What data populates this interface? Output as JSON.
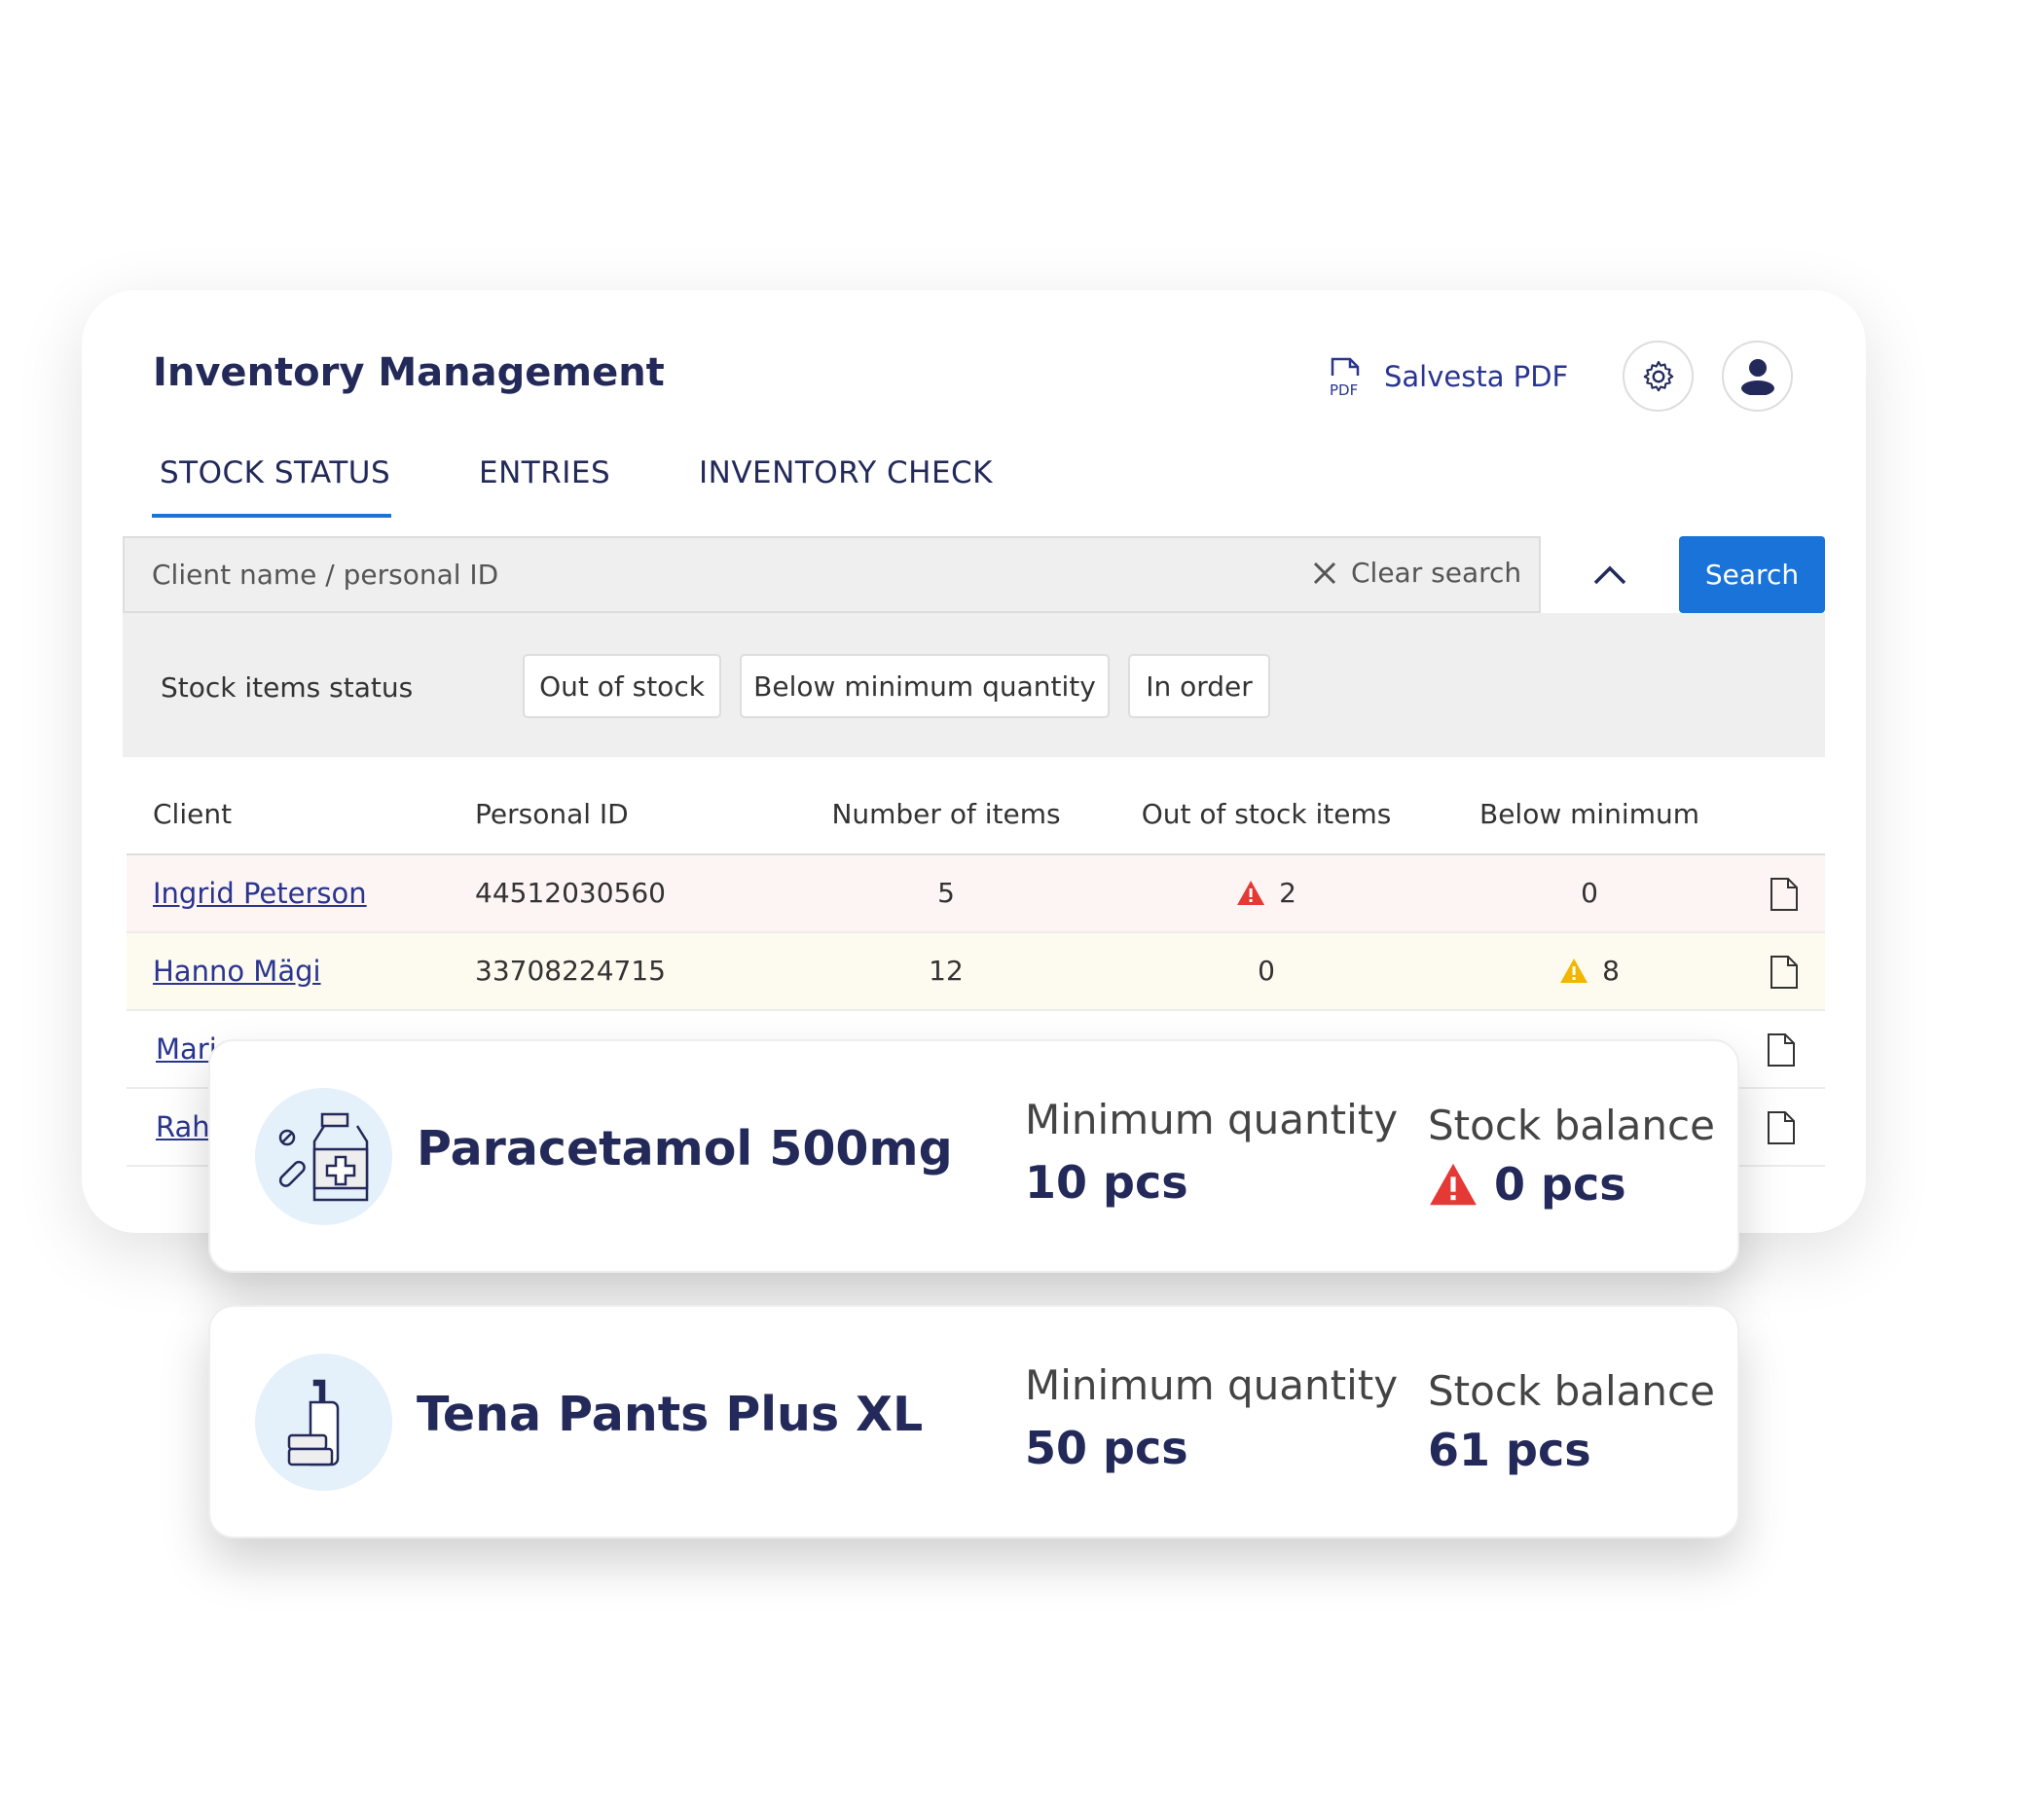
{
  "header": {
    "title": "Inventory Management",
    "pdf_label": "Salvesta PDF",
    "pdf_icon_text": "PDF"
  },
  "tabs": [
    {
      "label": "STOCK STATUS",
      "active": true
    },
    {
      "label": "ENTRIES"
    },
    {
      "label": "INVENTORY CHECK"
    }
  ],
  "search": {
    "placeholder": "Client name / personal ID",
    "clear_label": "Clear search",
    "button_label": "Search"
  },
  "filters": {
    "label": "Stock items status",
    "chips": [
      "Out of stock",
      "Below minimum quantity",
      "In order"
    ]
  },
  "table": {
    "columns": [
      "Client",
      "Personal ID",
      "Number of items",
      "Out of stock items",
      "Below minimum"
    ],
    "rows": [
      {
        "client": "Ingrid Peterson",
        "id": "44512030560",
        "items": "5",
        "out": "2",
        "below": "0",
        "status": "out"
      },
      {
        "client": "Hanno Mägi",
        "id": "33708224715",
        "items": "12",
        "out": "0",
        "below": "8",
        "status": "below"
      },
      {
        "client": "Mari"
      },
      {
        "client": "Rah"
      }
    ]
  },
  "products": [
    {
      "name": "Paracetamol 500mg",
      "min_label": "Minimum quantity",
      "min_value": "10 pcs",
      "bal_label": "Stock balance",
      "bal_value": "0 pcs",
      "alert": true,
      "icon": "medicine-bottle-icon"
    },
    {
      "name": "Tena Pants Plus XL",
      "min_label": "Minimum quantity",
      "min_value": "50 pcs",
      "bal_label": "Stock balance",
      "bal_value": "61 pcs",
      "alert": false,
      "icon": "hygiene-products-icon"
    }
  ],
  "colors": {
    "accent": "#1a73d9",
    "text": "#232a5a",
    "link": "#2a3590",
    "danger": "#e53935",
    "warning": "#f2b600"
  }
}
